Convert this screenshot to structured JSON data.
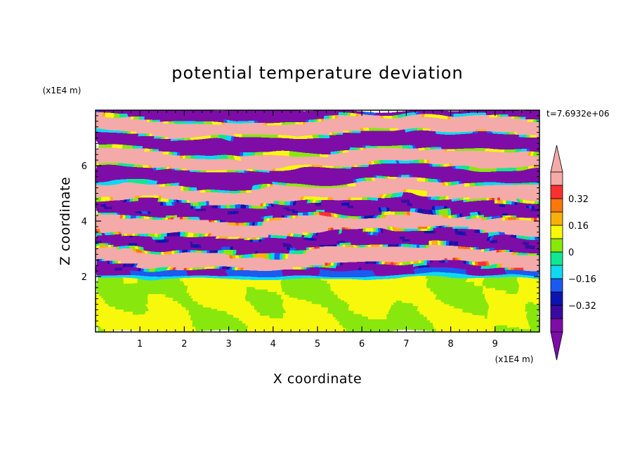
{
  "chart_data": {
    "type": "heatmap",
    "title": "potential temperature deviation",
    "xlabel": "X coordinate",
    "ylabel": "Z coordinate",
    "x_unit": "(x1E4 m)",
    "y_unit": "(x1E4 m)",
    "time_label": "t=7.6932e+06",
    "xlim": [
      0,
      10
    ],
    "ylim": [
      0,
      8
    ],
    "x_ticks": [
      "1",
      "2",
      "3",
      "4",
      "5",
      "6",
      "7",
      "8",
      "9"
    ],
    "y_ticks": [
      "2",
      "4",
      "6"
    ],
    "colorbar": {
      "levels": [
        -0.48,
        -0.4,
        -0.32,
        -0.24,
        -0.16,
        -0.08,
        0,
        0.08,
        0.16,
        0.24,
        0.32,
        0.4,
        0.48
      ],
      "tick_labels": [
        "0.32",
        "0.16",
        "0",
        "−0.16",
        "−0.32"
      ],
      "tick_values": [
        0.32,
        0.16,
        0,
        -0.16,
        -0.32
      ],
      "colors_low_to_high": [
        "#7e0ca8",
        "#3a0aa0",
        "#0a14b0",
        "#1a5af0",
        "#10d8f0",
        "#10e890",
        "#88e80a",
        "#f8f808",
        "#f8b008",
        "#f87808",
        "#f83030",
        "#f4aaa8"
      ],
      "over_color": "#f4aaa8",
      "under_color": "#7e0ca8"
    },
    "bands_description_values": {
      "lower_layer_dominant": [
        0,
        0.08
      ],
      "upper_layer_dominant": [
        -0.48,
        0.48
      ]
    }
  }
}
